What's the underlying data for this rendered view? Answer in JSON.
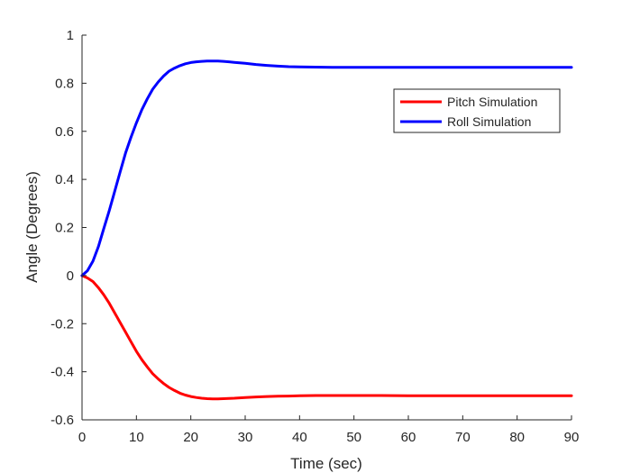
{
  "chart_data": {
    "type": "line",
    "title": "",
    "xlabel": "Time (sec)",
    "ylabel": "Angle (Degrees)",
    "xlim": [
      0,
      90
    ],
    "ylim": [
      -0.6,
      1
    ],
    "xticks": [
      0,
      10,
      20,
      30,
      40,
      50,
      60,
      70,
      80,
      90
    ],
    "yticks": [
      -0.6,
      -0.4,
      -0.2,
      0,
      0.2,
      0.4,
      0.6,
      0.8,
      1
    ],
    "grid": false,
    "legend_position": "top-right",
    "series": [
      {
        "name": "Pitch Simulation",
        "color": "#ff0000",
        "x": [
          0,
          1,
          2,
          3,
          4,
          5,
          6,
          7,
          8,
          9,
          10,
          11,
          12,
          13,
          14,
          15,
          16,
          17,
          18,
          19,
          20,
          21,
          22,
          23,
          24,
          25,
          26,
          27,
          28,
          30,
          32,
          34,
          36,
          38,
          40,
          43,
          46,
          50,
          55,
          60,
          65,
          70,
          75,
          80,
          85,
          90
        ],
        "y": [
          0,
          -0.01,
          -0.025,
          -0.05,
          -0.08,
          -0.115,
          -0.155,
          -0.195,
          -0.235,
          -0.275,
          -0.315,
          -0.35,
          -0.38,
          -0.408,
          -0.43,
          -0.449,
          -0.465,
          -0.478,
          -0.489,
          -0.497,
          -0.503,
          -0.507,
          -0.51,
          -0.512,
          -0.513,
          -0.513,
          -0.512,
          -0.511,
          -0.51,
          -0.507,
          -0.505,
          -0.503,
          -0.502,
          -0.501,
          -0.5,
          -0.499,
          -0.499,
          -0.499,
          -0.499,
          -0.5,
          -0.5,
          -0.5,
          -0.5,
          -0.5,
          -0.5,
          -0.5
        ]
      },
      {
        "name": "Roll Simulation",
        "color": "#0000ff",
        "x": [
          0,
          1,
          2,
          3,
          4,
          5,
          6,
          7,
          8,
          9,
          10,
          11,
          12,
          13,
          14,
          15,
          16,
          17,
          18,
          19,
          20,
          21,
          22,
          23,
          24,
          25,
          26,
          27,
          28,
          30,
          32,
          34,
          36,
          38,
          40,
          43,
          46,
          50,
          55,
          60,
          65,
          70,
          75,
          80,
          85,
          90
        ],
        "y": [
          0,
          0.02,
          0.06,
          0.12,
          0.195,
          0.27,
          0.35,
          0.43,
          0.51,
          0.575,
          0.635,
          0.69,
          0.735,
          0.775,
          0.805,
          0.83,
          0.85,
          0.863,
          0.873,
          0.881,
          0.886,
          0.889,
          0.891,
          0.892,
          0.892,
          0.892,
          0.891,
          0.889,
          0.887,
          0.883,
          0.878,
          0.874,
          0.871,
          0.869,
          0.868,
          0.867,
          0.866,
          0.866,
          0.866,
          0.866,
          0.866,
          0.866,
          0.866,
          0.866,
          0.866,
          0.866
        ]
      }
    ]
  }
}
